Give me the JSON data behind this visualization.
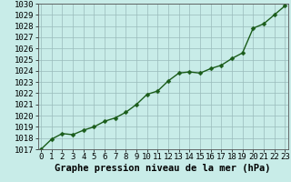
{
  "x": [
    0,
    1,
    2,
    3,
    4,
    5,
    6,
    7,
    8,
    9,
    10,
    11,
    12,
    13,
    14,
    15,
    16,
    17,
    18,
    19,
    20,
    21,
    22,
    23
  ],
  "y": [
    1017.0,
    1017.9,
    1018.4,
    1018.3,
    1018.7,
    1019.0,
    1019.5,
    1019.8,
    1020.3,
    1021.0,
    1021.9,
    1022.2,
    1023.1,
    1023.8,
    1023.9,
    1023.8,
    1024.2,
    1024.5,
    1025.1,
    1025.6,
    1027.8,
    1028.2,
    1029.0,
    1029.8
  ],
  "ylim": [
    1017,
    1030
  ],
  "xlim": [
    -0.3,
    23.3
  ],
  "yticks": [
    1017,
    1018,
    1019,
    1020,
    1021,
    1022,
    1023,
    1024,
    1025,
    1026,
    1027,
    1028,
    1029,
    1030
  ],
  "xticks": [
    0,
    1,
    2,
    3,
    4,
    5,
    6,
    7,
    8,
    9,
    10,
    11,
    12,
    13,
    14,
    15,
    16,
    17,
    18,
    19,
    20,
    21,
    22,
    23
  ],
  "line_color": "#1a5c1a",
  "marker": "D",
  "marker_size": 2.5,
  "bg_color": "#c8ece8",
  "grid_color": "#99bbbb",
  "xlabel": "Graphe pression niveau de la mer (hPa)",
  "xlabel_fontsize": 7.5,
  "tick_fontsize": 6.5,
  "line_width": 1.0
}
